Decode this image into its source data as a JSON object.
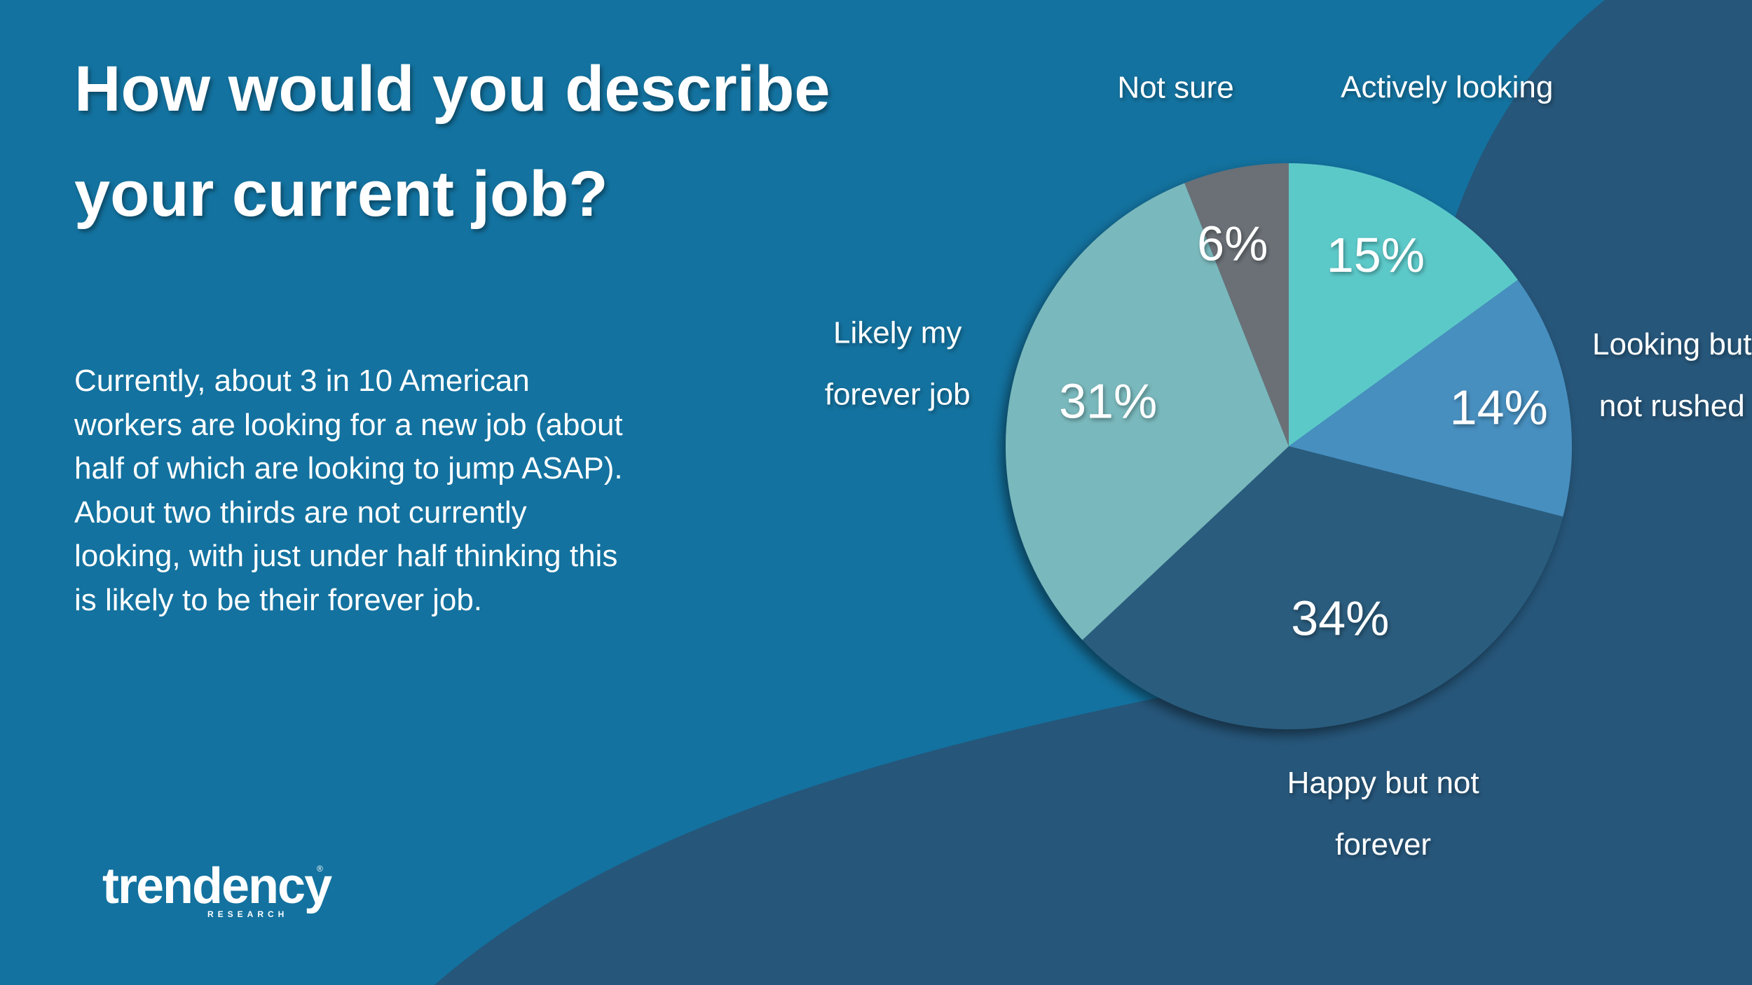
{
  "colors": {
    "background_primary": "#13729f",
    "background_secondary": "#26567a",
    "text": "#ffffff"
  },
  "slide": {
    "title_lines": [
      "How would you describe",
      "your current job?"
    ],
    "body_lines": [
      "Currently, about 3 in 10 American",
      "workers are looking for a new job (about",
      "half of which are looking to jump ASAP).",
      "About two thirds are not currently",
      "looking, with just under half thinking this",
      "is likely to be their forever job."
    ]
  },
  "logo": {
    "name": "trendency",
    "subtitle": "RESEARCH",
    "mark": "®"
  },
  "chart_data": {
    "type": "pie",
    "title": "How would you describe your current job?",
    "start_angle_deg": 0,
    "direction": "clockwise",
    "slices": [
      {
        "label_lines": [
          "Actively looking"
        ],
        "value": 15,
        "value_label": "15%",
        "color": "#5bc9c9"
      },
      {
        "label_lines": [
          "Looking but",
          "not rushed"
        ],
        "value": 14,
        "value_label": "14%",
        "color": "#468fbf"
      },
      {
        "label_lines": [
          "Happy but not",
          "forever"
        ],
        "value": 34,
        "value_label": "34%",
        "color": "#295c7d"
      },
      {
        "label_lines": [
          "Likely my",
          "forever job"
        ],
        "value": 31,
        "value_label": "31%",
        "color": "#79b8bc"
      },
      {
        "label_lines": [
          "Not sure"
        ],
        "value": 6,
        "value_label": "6%",
        "color": "#6b7076"
      }
    ]
  }
}
